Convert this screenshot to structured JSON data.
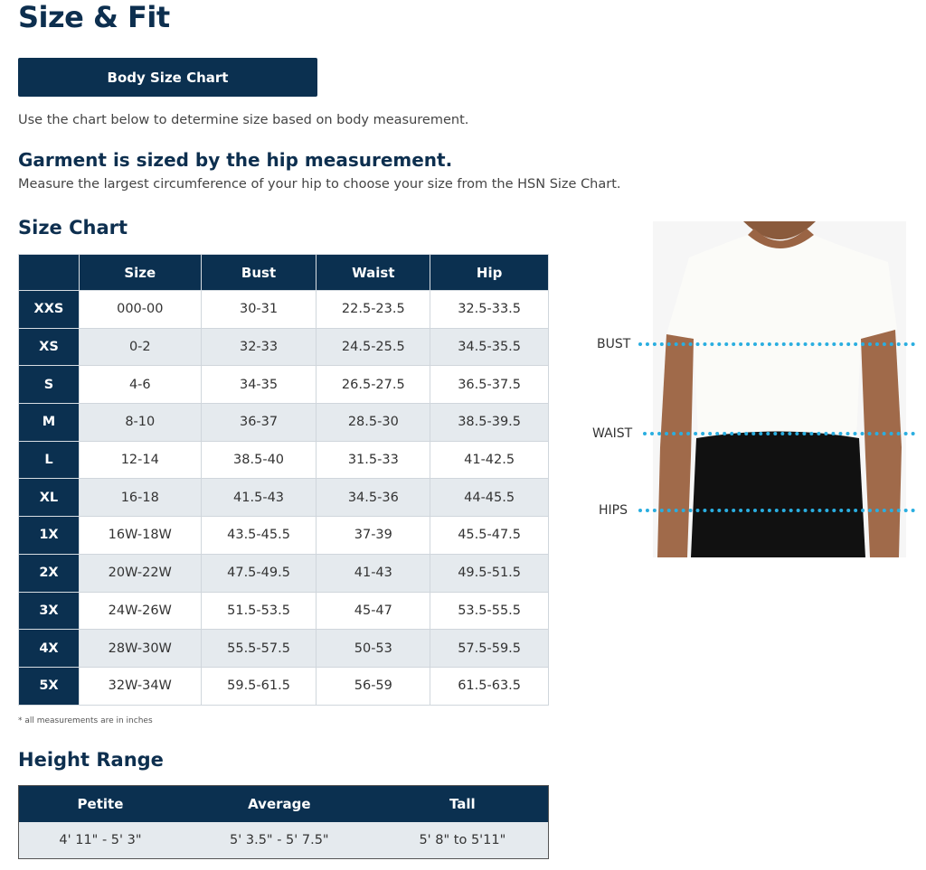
{
  "title": "Size & Fit",
  "button_label": "Body Size Chart",
  "intro": "Use the chart below to determine size based on body measurement.",
  "garment_heading": "Garment is sized by the hip measurement.",
  "garment_text": "Measure the largest circumference of your hip to choose your size from the HSN Size Chart.",
  "size_chart": {
    "heading": "Size Chart",
    "headers": [
      "",
      "Size",
      "Bust",
      "Waist",
      "Hip"
    ],
    "rows": [
      [
        "XXS",
        "000-00",
        "30-31",
        "22.5-23.5",
        "32.5-33.5"
      ],
      [
        "XS",
        "0-2",
        "32-33",
        "24.5-25.5",
        "34.5-35.5"
      ],
      [
        "S",
        "4-6",
        "34-35",
        "26.5-27.5",
        "36.5-37.5"
      ],
      [
        "M",
        "8-10",
        "36-37",
        "28.5-30",
        "38.5-39.5"
      ],
      [
        "L",
        "12-14",
        "38.5-40",
        "31.5-33",
        "41-42.5"
      ],
      [
        "XL",
        "16-18",
        "41.5-43",
        "34.5-36",
        "44-45.5"
      ],
      [
        "1X",
        "16W-18W",
        "43.5-45.5",
        "37-39",
        "45.5-47.5"
      ],
      [
        "2X",
        "20W-22W",
        "47.5-49.5",
        "41-43",
        "49.5-51.5"
      ],
      [
        "3X",
        "24W-26W",
        "51.5-53.5",
        "45-47",
        "53.5-55.5"
      ],
      [
        "4X",
        "28W-30W",
        "55.5-57.5",
        "50-53",
        "57.5-59.5"
      ],
      [
        "5X",
        "32W-34W",
        "59.5-61.5",
        "56-59",
        "61.5-63.5"
      ]
    ],
    "note": "* all measurements are in inches"
  },
  "height_range": {
    "heading": "Height Range",
    "headers": [
      "Petite",
      "Average",
      "Tall"
    ],
    "values": [
      "4' 11\" - 5' 3\"",
      "5' 3.5\" - 5' 7.5\"",
      "5' 8\" to 5'11\""
    ]
  },
  "figure": {
    "labels": [
      "BUST",
      "WAIST",
      "HIPS"
    ],
    "line_color": "#2aaee0"
  },
  "colors": {
    "navy": "#0b3050",
    "stripe": "#e5eaee"
  }
}
